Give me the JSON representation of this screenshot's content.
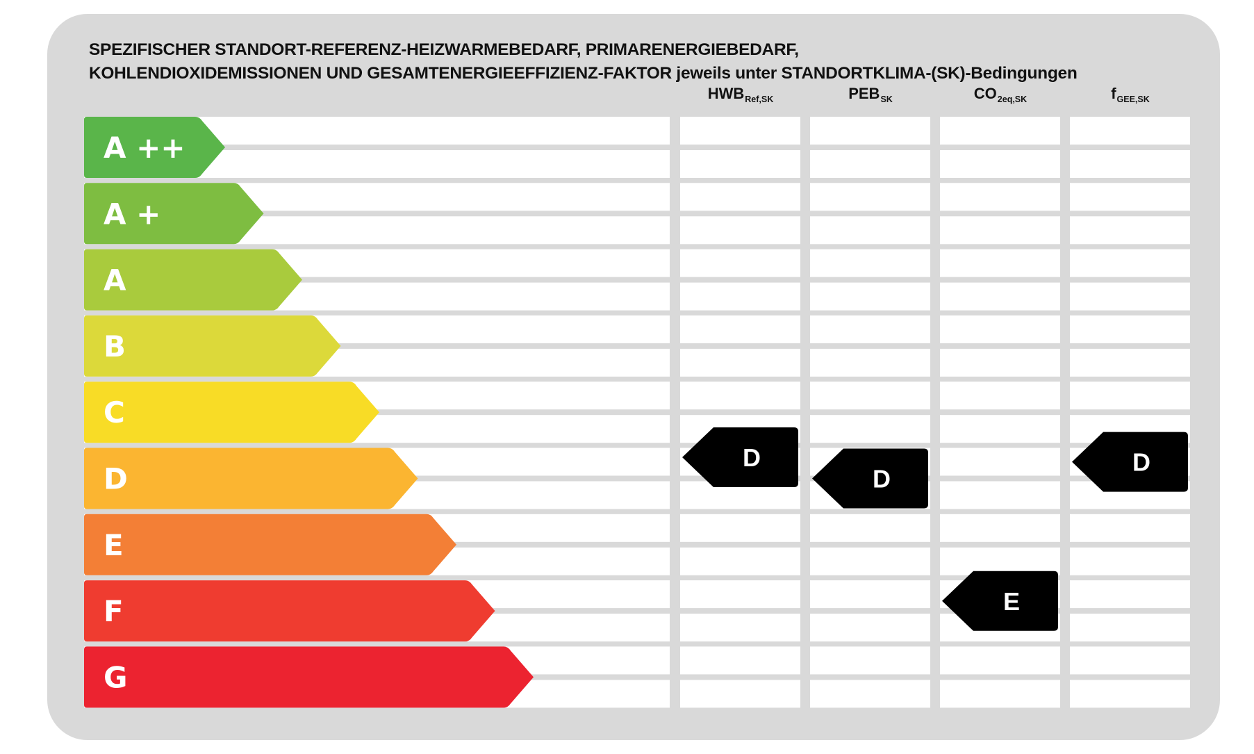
{
  "title": {
    "line1": "SPEZIFISCHER STANDORT-REFERENZ-HEIZWARMEBEDARF, PRIMARENERGIEBEDARF,",
    "line2": "KOHLENDIOXIDEMISSIONEN UND GESAMTENERGIEEFFIZIENZ-FAKTOR jeweils unter STANDORTKLIMA-(SK)-Bedingungen"
  },
  "columns": [
    {
      "main": "HWB",
      "sub": "Ref,SK",
      "rating": "D"
    },
    {
      "main": "PEB",
      "sub": "SK",
      "rating": "D"
    },
    {
      "main": "CO",
      "sub": "2eq,SK",
      "rating": "E"
    },
    {
      "main": "f",
      "sub": "GEE,SK",
      "rating": "D"
    }
  ],
  "classes": [
    {
      "label": "A ++",
      "color": "#5ab54a"
    },
    {
      "label": "A +",
      "color": "#7ebd41"
    },
    {
      "label": "A",
      "color": "#a9cb3d"
    },
    {
      "label": "B",
      "color": "#dcd93a"
    },
    {
      "label": "C",
      "color": "#f8dc26"
    },
    {
      "label": "D",
      "color": "#fbb531"
    },
    {
      "label": "E",
      "color": "#f37f36"
    },
    {
      "label": "F",
      "color": "#ef3c30"
    },
    {
      "label": "G",
      "color": "#ec2330"
    }
  ],
  "colors": {
    "frame": "#d9d9d9",
    "marker": "#000000",
    "marker_text": "#ffffff",
    "class_text": "#ffffff"
  }
}
